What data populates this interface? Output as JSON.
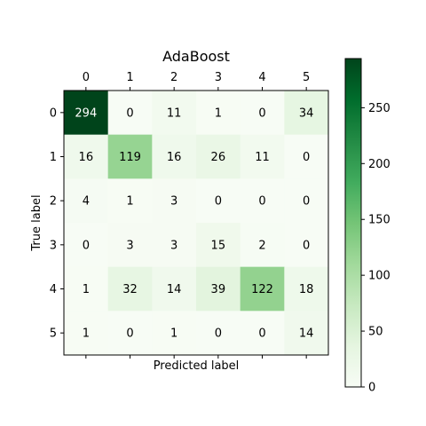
{
  "chart_data": {
    "type": "heatmap",
    "title": "AdaBoost",
    "xlabel": "Predicted label",
    "ylabel": "True label",
    "x_categories": [
      "0",
      "1",
      "2",
      "3",
      "4",
      "5"
    ],
    "y_categories": [
      "0",
      "1",
      "2",
      "3",
      "4",
      "5"
    ],
    "matrix": [
      [
        294,
        0,
        11,
        1,
        0,
        34
      ],
      [
        16,
        119,
        16,
        26,
        11,
        0
      ],
      [
        4,
        1,
        3,
        0,
        0,
        0
      ],
      [
        0,
        3,
        3,
        15,
        2,
        0
      ],
      [
        1,
        32,
        14,
        39,
        122,
        18
      ],
      [
        1,
        0,
        1,
        0,
        0,
        14
      ]
    ],
    "colormap": "Greens",
    "color_range": [
      0,
      294
    ],
    "colorbar_ticks": [
      0,
      50,
      100,
      150,
      200,
      250
    ],
    "x_ticks_position": "top",
    "grid": false
  }
}
